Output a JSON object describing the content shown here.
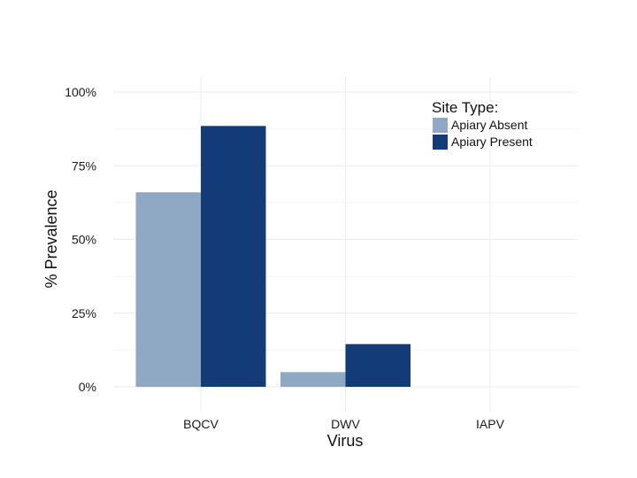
{
  "chart_data": {
    "type": "bar",
    "categories": [
      "BQCV",
      "DWV",
      "IAPV"
    ],
    "series": [
      {
        "name": "Apiary Absent",
        "values": [
          66,
          5,
          0
        ],
        "color": "#8fa9c4"
      },
      {
        "name": "Apiary Present",
        "values": [
          88.5,
          14.5,
          0
        ],
        "color": "#123b78"
      }
    ],
    "xlabel": "Virus",
    "ylabel": "% Prevalence",
    "ylim": [
      0,
      100
    ],
    "yticks": [
      0,
      25,
      50,
      75,
      100
    ],
    "ytick_labels": [
      "0%",
      "25%",
      "50%",
      "75%",
      "100%"
    ],
    "legend_title": "Site Type:",
    "legend_position": "top-right",
    "grid": true
  }
}
